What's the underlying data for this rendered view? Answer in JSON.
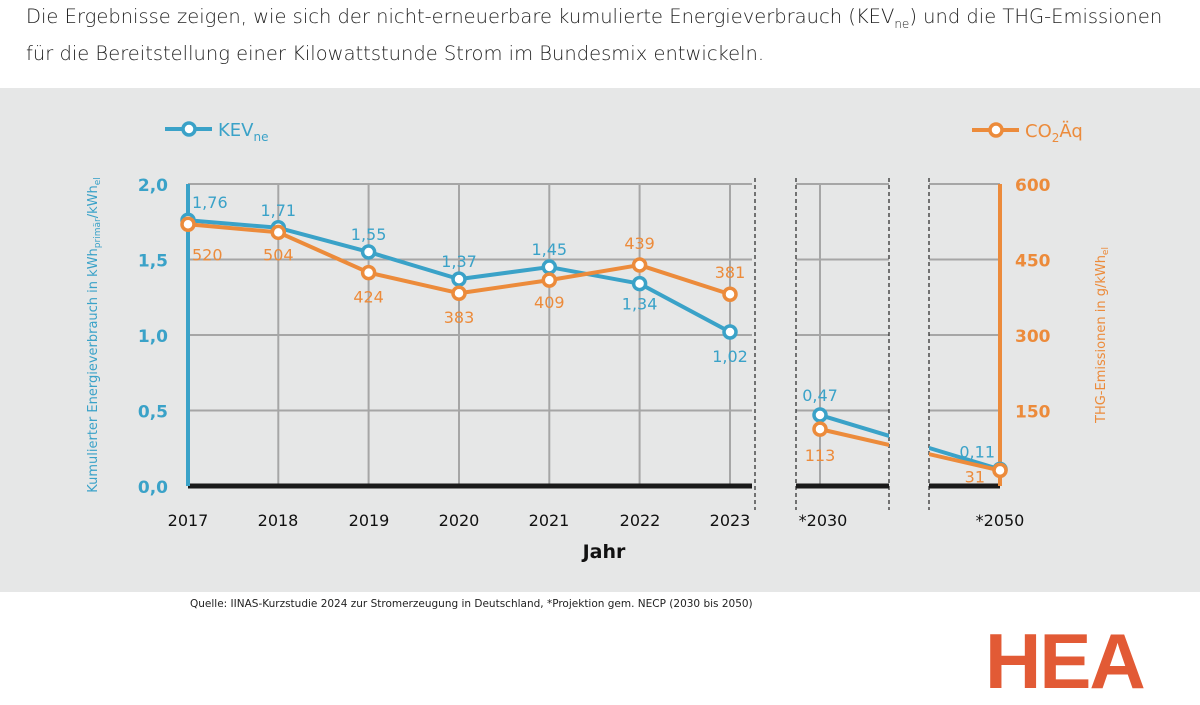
{
  "intro": {
    "line1_a": "Die Ergebnisse zeigen, wie sich der nicht-erneuerbare kumulierte Energieverbrauch (KEV",
    "line1_sub": "ne",
    "line1_b": ") und die THG-Emissionen",
    "line2": "für die Bereitstellung einer Kilowattstunde Strom im Bundesmix entwickeln."
  },
  "source": "Quelle: IINAS-Kurzstudie 2024 zur Stromerzeugung in Deutschland, *Projektion gem. NECP (2030 bis 2050)",
  "logo": "HEA",
  "chart_data": {
    "type": "line",
    "xlabel": "Jahr",
    "categories": [
      "2017",
      "2018",
      "2019",
      "2020",
      "2021",
      "2022",
      "2023",
      "*2030",
      "*2050"
    ],
    "ylabel_left": {
      "main": "Kumulierter Energieverbrauch in kWh",
      "sub1": "primär",
      "mid": "/kWh",
      "sub2": "el"
    },
    "ylabel_right": {
      "main": "THG-Emissionen in g/kWh",
      "sub": "el"
    },
    "ylim_left": [
      0,
      2.0
    ],
    "yticks_left": [
      "0,0",
      "0,5",
      "1,0",
      "1,5",
      "2,0"
    ],
    "ylim_right": [
      0,
      600
    ],
    "yticks_right": [
      "150",
      "300",
      "450",
      "600"
    ],
    "grid": true,
    "series": [
      {
        "name": "KEV",
        "name_sub": "ne",
        "axis": "left",
        "color": "#3aa2c8",
        "values": [
          1.76,
          1.71,
          1.55,
          1.37,
          1.45,
          1.34,
          1.02,
          0.47,
          0.11
        ],
        "labels": [
          "1,76",
          "1,71",
          "1,55",
          "1,37",
          "1,45",
          "1,34",
          "1,02",
          "0,47",
          "0,11"
        ]
      },
      {
        "name": "CO",
        "name_sub": "2",
        "name_rest": "Äq",
        "axis": "right",
        "color": "#ec8b3b",
        "values": [
          520,
          504,
          424,
          383,
          409,
          439,
          381,
          113,
          31
        ],
        "labels": [
          "520",
          "504",
          "424",
          "383",
          "409",
          "439",
          "381",
          "113",
          "31"
        ]
      }
    ],
    "legend": [
      "top-left (KEV)",
      "top-right (CO2Äq)"
    ]
  }
}
